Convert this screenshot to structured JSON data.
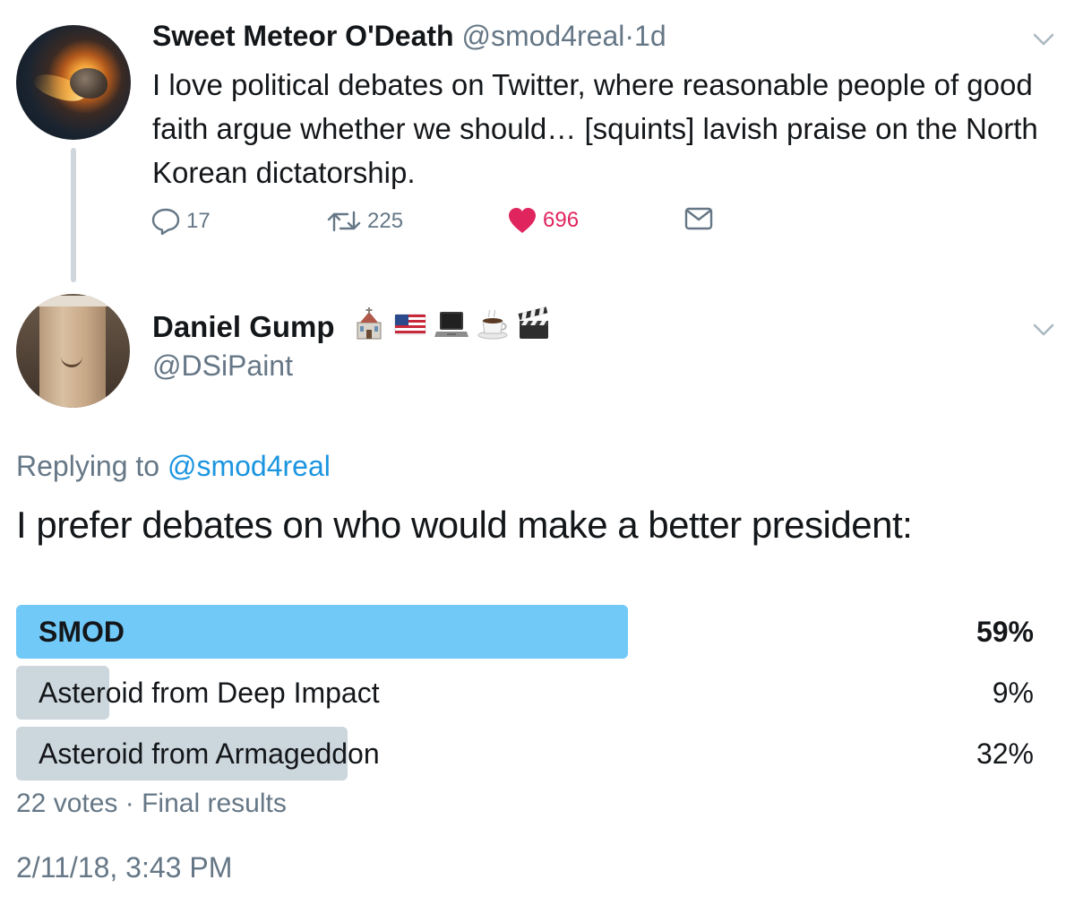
{
  "parent_tweet": {
    "author_name": "Sweet Meteor O'Death",
    "author_handle": "@smod4real",
    "separator": "·",
    "time": "1d",
    "text": "I love political debates on Twitter, where reasonable people of good faith argue whether we should… [squints] lavish praise on the North Korean dictatorship.",
    "actions": {
      "reply_count": "17",
      "retweet_count": "225",
      "like_count": "696"
    },
    "icons": {
      "avatar": "meteor-avatar",
      "reply": "reply-icon",
      "retweet": "retweet-icon",
      "like": "heart-icon",
      "dm": "envelope-icon",
      "menu": "chevron-down-icon"
    },
    "colors": {
      "like": "#e0245e",
      "muted": "#657786"
    }
  },
  "reply_tweet": {
    "author_name": "Daniel Gump",
    "author_emoji": [
      "church-emoji",
      "us-flag-emoji",
      "laptop-emoji",
      "coffee-emoji",
      "clapper-board-emoji"
    ],
    "author_handle": "@DSiPaint",
    "replying_prefix": "Replying to",
    "replying_mention": "@smod4real",
    "text": "I prefer debates on who would make a better president:",
    "colors": {
      "link": "#1b95e0"
    }
  },
  "poll": {
    "options": [
      {
        "label": "SMOD",
        "percent_label": "59%",
        "percent": 59,
        "winner": true
      },
      {
        "label": "Asteroid from Deep Impact",
        "percent_label": "9%",
        "percent": 9,
        "winner": false
      },
      {
        "label": "Asteroid from Armageddon",
        "percent_label": "32%",
        "percent": 32,
        "winner": false
      }
    ],
    "votes": "22 votes",
    "footer_separator": "·",
    "status": "Final results",
    "colors": {
      "winner_bar": "#71c9f8",
      "bar": "#ccd6dd"
    }
  },
  "timestamp": "2/11/18, 3:43 PM"
}
